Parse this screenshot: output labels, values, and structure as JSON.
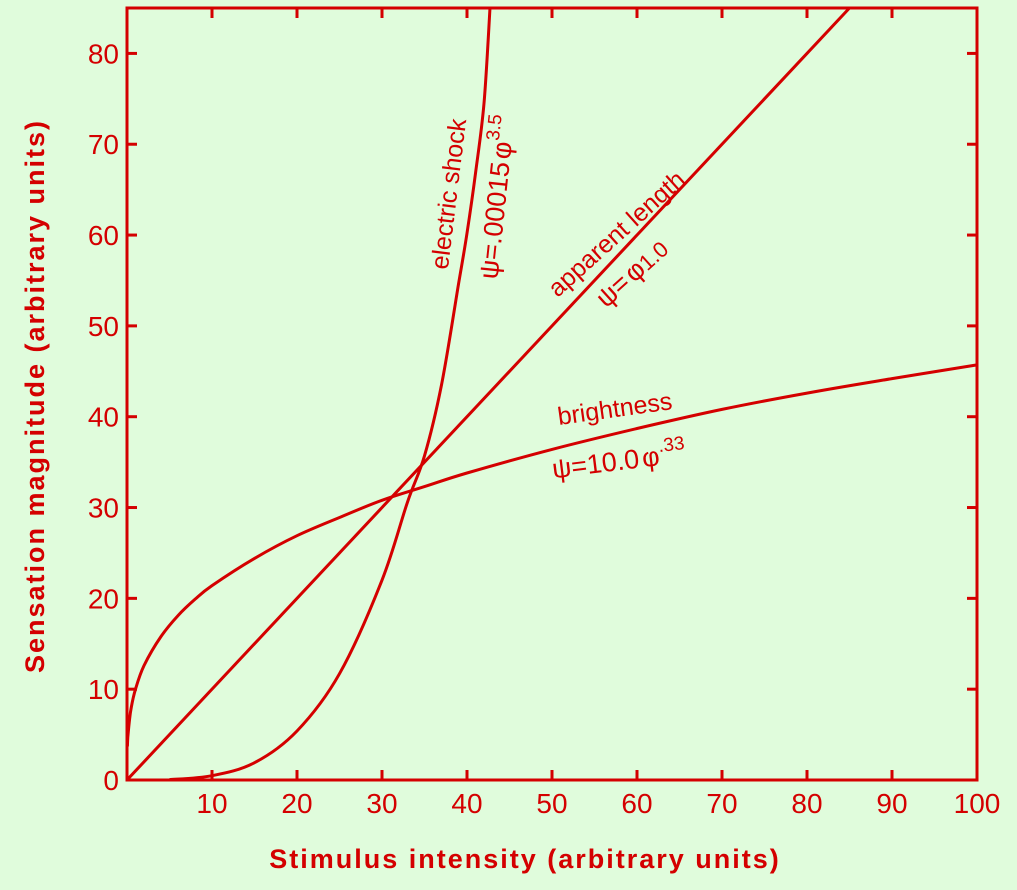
{
  "chart_data": {
    "type": "line",
    "xlabel": "Stimulus intensity (arbitrary units)",
    "ylabel": "Sensation magnitude (arbitrary units)",
    "xlim": [
      0,
      100
    ],
    "ylim": [
      0,
      85
    ],
    "x_ticks": [
      "10",
      "20",
      "30",
      "40",
      "50",
      "60",
      "70",
      "80",
      "90",
      "100"
    ],
    "y_ticks": [
      "0",
      "10",
      "20",
      "30",
      "40",
      "50",
      "60",
      "70",
      "80"
    ],
    "grid": false,
    "colors": {
      "ink": "#d40000",
      "background": "#e0fcdc"
    },
    "series": [
      {
        "name": "electric shock",
        "equation": {
          "psi": "ψ",
          "coef": "=.00015",
          "phi": "φ",
          "exp": "3.5"
        },
        "x": [
          5,
          10,
          15,
          20,
          25,
          30,
          33,
          35,
          37,
          39,
          40,
          41,
          42,
          42.7
        ],
        "y": [
          0.04,
          0.47,
          1.9,
          5.4,
          11.7,
          22,
          30.6,
          35.7,
          43.5,
          54.6,
          60.2,
          66.8,
          74.5,
          85
        ]
      },
      {
        "name": "apparent length",
        "equation": {
          "psi": "ψ",
          "coef": "=",
          "phi": "φ",
          "exp": "1.0"
        },
        "x": [
          0,
          85
        ],
        "y": [
          0,
          85
        ]
      },
      {
        "name": "brightness",
        "equation": {
          "psi": "ψ",
          "coef": "=10.0",
          "phi": "φ",
          "exp": ".33"
        },
        "x": [
          0.05,
          0.1,
          0.3,
          0.5,
          1,
          2,
          4,
          6,
          8,
          10,
          15,
          20,
          25,
          30,
          35,
          40,
          50,
          60,
          70,
          80,
          90,
          100
        ],
        "y": [
          3.7,
          4.7,
          6.7,
          8.0,
          10,
          12.6,
          15.8,
          18.1,
          19.9,
          21.4,
          24.4,
          26.9,
          28.9,
          30.8,
          32.3,
          33.8,
          36.4,
          38.7,
          40.8,
          42.6,
          44.2,
          45.7
        ]
      }
    ]
  }
}
